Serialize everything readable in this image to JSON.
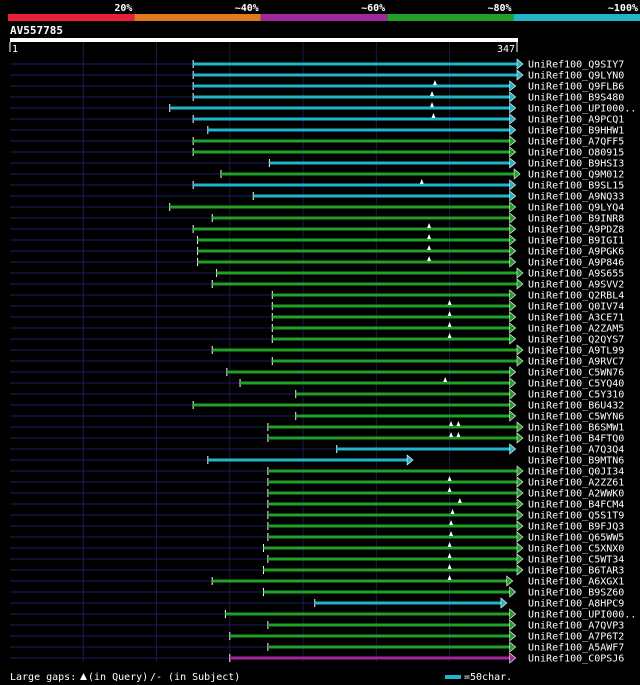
{
  "chart_data": {
    "type": "alignment-overview",
    "title": "AV557785",
    "query_length": 347,
    "axis": {
      "start_label": "1",
      "end_label": "347",
      "start": 1,
      "end": 347
    },
    "identity_legend": [
      {
        "label": "20%",
        "color": "#e8203a"
      },
      {
        "label": "~40%",
        "color": "#e07a1c"
      },
      {
        "label": "~60%",
        "color": "#a0289c"
      },
      {
        "label": "~80%",
        "color": "#22a028"
      },
      {
        "label": "~100%",
        "color": "#22b4c8"
      }
    ],
    "footer": {
      "gaps_label": "Large gaps:",
      "gaps_query": "(in Query)",
      "gaps_subject": "/- (in Subject)",
      "scale_label": "=50char."
    },
    "hits": [
      {
        "name": "UniRef100_Q9SIY7",
        "start": 126,
        "end": 347,
        "color": "cyan",
        "arrow": true,
        "gaps": []
      },
      {
        "name": "UniRef100_Q9LYN0",
        "start": 126,
        "end": 347,
        "color": "cyan",
        "arrow": true,
        "gaps": []
      },
      {
        "name": "UniRef100_Q9FLB6",
        "start": 126,
        "end": 342,
        "color": "cyan",
        "arrow": true,
        "gaps": [
          291
        ]
      },
      {
        "name": "UniRef100_B9S480",
        "start": 126,
        "end": 342,
        "color": "cyan",
        "arrow": true,
        "gaps": [
          289
        ]
      },
      {
        "name": "UniRef100_UPI000..",
        "start": 110,
        "end": 342,
        "color": "cyan",
        "arrow": true,
        "gaps": [
          289
        ]
      },
      {
        "name": "UniRef100_A9PCQ1",
        "start": 126,
        "end": 342,
        "color": "cyan",
        "arrow": true,
        "gaps": [
          290
        ]
      },
      {
        "name": "UniRef100_B9HHW1",
        "start": 136,
        "end": 342,
        "color": "cyan",
        "arrow": true,
        "gaps": []
      },
      {
        "name": "UniRef100_A7QFF5",
        "start": 126,
        "end": 342,
        "color": "green",
        "arrow": true,
        "gaps": []
      },
      {
        "name": "UniRef100_O80915",
        "start": 126,
        "end": 342,
        "color": "green",
        "arrow": true,
        "gaps": []
      },
      {
        "name": "UniRef100_B9HSI3",
        "start": 178,
        "end": 342,
        "color": "cyan",
        "arrow": true,
        "gaps": []
      },
      {
        "name": "UniRef100_Q9M012",
        "start": 145,
        "end": 345,
        "color": "green",
        "arrow": true,
        "gaps": []
      },
      {
        "name": "UniRef100_B9SL15",
        "start": 126,
        "end": 342,
        "color": "cyan",
        "arrow": true,
        "gaps": [
          282
        ]
      },
      {
        "name": "UniRef100_A9NQ33",
        "start": 167,
        "end": 342,
        "color": "cyan",
        "arrow": true,
        "gaps": []
      },
      {
        "name": "UniRef100_Q9LYQ4",
        "start": 110,
        "end": 342,
        "color": "green",
        "arrow": true,
        "gaps": []
      },
      {
        "name": "UniRef100_B9INR8",
        "start": 139,
        "end": 342,
        "color": "green",
        "arrow": true,
        "gaps": []
      },
      {
        "name": "UniRef100_A9PDZ8",
        "start": 126,
        "end": 342,
        "color": "green",
        "arrow": true,
        "gaps": [
          287
        ]
      },
      {
        "name": "UniRef100_B9IGI1",
        "start": 129,
        "end": 342,
        "color": "green",
        "arrow": true,
        "gaps": [
          287
        ]
      },
      {
        "name": "UniRef100_A9PGK6",
        "start": 129,
        "end": 342,
        "color": "green",
        "arrow": true,
        "gaps": [
          287
        ]
      },
      {
        "name": "UniRef100_A9P846",
        "start": 129,
        "end": 342,
        "color": "green",
        "arrow": true,
        "gaps": [
          287
        ]
      },
      {
        "name": "UniRef100_A9S655",
        "start": 142,
        "end": 347,
        "color": "green",
        "arrow": true,
        "gaps": []
      },
      {
        "name": "UniRef100_A9SVV2",
        "start": 139,
        "end": 347,
        "color": "green",
        "arrow": true,
        "gaps": []
      },
      {
        "name": "UniRef100_Q2RBL4",
        "start": 180,
        "end": 342,
        "color": "green",
        "arrow": true,
        "gaps": []
      },
      {
        "name": "UniRef100_Q0IV74",
        "start": 180,
        "end": 342,
        "color": "green",
        "arrow": true,
        "gaps": [
          301
        ]
      },
      {
        "name": "UniRef100_A3CE71",
        "start": 180,
        "end": 342,
        "color": "green",
        "arrow": true,
        "gaps": [
          301
        ]
      },
      {
        "name": "UniRef100_A2ZAM5",
        "start": 180,
        "end": 342,
        "color": "green",
        "arrow": true,
        "gaps": [
          301
        ]
      },
      {
        "name": "UniRef100_Q2QYS7",
        "start": 180,
        "end": 342,
        "color": "green",
        "arrow": true,
        "gaps": [
          301
        ]
      },
      {
        "name": "UniRef100_A9TL99",
        "start": 139,
        "end": 347,
        "color": "green",
        "arrow": true,
        "gaps": []
      },
      {
        "name": "UniRef100_A9RVC7",
        "start": 180,
        "end": 347,
        "color": "green",
        "arrow": true,
        "gaps": []
      },
      {
        "name": "UniRef100_C5WN76",
        "start": 149,
        "end": 342,
        "color": "green",
        "arrow": true,
        "gaps": []
      },
      {
        "name": "UniRef100_C5YQ40",
        "start": 158,
        "end": 342,
        "color": "green",
        "arrow": true,
        "gaps": [
          298
        ]
      },
      {
        "name": "UniRef100_C5Y310",
        "start": 196,
        "end": 342,
        "color": "green",
        "arrow": true,
        "gaps": []
      },
      {
        "name": "UniRef100_B6U432",
        "start": 126,
        "end": 342,
        "color": "green",
        "arrow": true,
        "gaps": []
      },
      {
        "name": "UniRef100_C5WYN6",
        "start": 196,
        "end": 342,
        "color": "green",
        "arrow": true,
        "gaps": []
      },
      {
        "name": "UniRef100_B6SMW1",
        "start": 177,
        "end": 347,
        "color": "green",
        "arrow": true,
        "gaps": [
          302,
          307
        ]
      },
      {
        "name": "UniRef100_B4FTQ0",
        "start": 177,
        "end": 347,
        "color": "green",
        "arrow": true,
        "gaps": [
          302,
          307
        ]
      },
      {
        "name": "UniRef100_A7Q3Q4",
        "start": 224,
        "end": 342,
        "color": "cyan",
        "arrow": true,
        "gaps": []
      },
      {
        "name": "UniRef100_B9MTN6",
        "start": 136,
        "end": 272,
        "color": "cyan",
        "arrow": true,
        "gaps": []
      },
      {
        "name": "UniRef100_Q0JI34",
        "start": 177,
        "end": 347,
        "color": "green",
        "arrow": true,
        "gaps": []
      },
      {
        "name": "UniRef100_A2ZZ61",
        "start": 177,
        "end": 347,
        "color": "green",
        "arrow": true,
        "gaps": [
          301
        ]
      },
      {
        "name": "UniRef100_A2WWK0",
        "start": 177,
        "end": 347,
        "color": "green",
        "arrow": true,
        "gaps": [
          301
        ]
      },
      {
        "name": "UniRef100_B4FCM4",
        "start": 177,
        "end": 347,
        "color": "green",
        "arrow": true,
        "gaps": [
          308
        ]
      },
      {
        "name": "UniRef100_Q5S1T9",
        "start": 177,
        "end": 347,
        "color": "green",
        "arrow": true,
        "gaps": [
          303
        ]
      },
      {
        "name": "UniRef100_B9FJQ3",
        "start": 177,
        "end": 347,
        "color": "green",
        "arrow": true,
        "gaps": [
          302
        ]
      },
      {
        "name": "UniRef100_Q65WW5",
        "start": 177,
        "end": 347,
        "color": "green",
        "arrow": true,
        "gaps": [
          302
        ]
      },
      {
        "name": "UniRef100_C5XNX0",
        "start": 174,
        "end": 347,
        "color": "green",
        "arrow": true,
        "gaps": [
          301
        ]
      },
      {
        "name": "UniRef100_C5WT34",
        "start": 177,
        "end": 347,
        "color": "green",
        "arrow": true,
        "gaps": [
          301
        ]
      },
      {
        "name": "UniRef100_B6TAR3",
        "start": 174,
        "end": 347,
        "color": "green",
        "arrow": true,
        "gaps": [
          301
        ]
      },
      {
        "name": "UniRef100_A6XGX1",
        "start": 139,
        "end": 340,
        "color": "green",
        "arrow": true,
        "gaps": [
          301
        ]
      },
      {
        "name": "UniRef100_B9SZ60",
        "start": 174,
        "end": 342,
        "color": "green",
        "arrow": true,
        "gaps": []
      },
      {
        "name": "UniRef100_A8HPC9",
        "start": 209,
        "end": 336,
        "color": "cyan",
        "arrow": true,
        "gaps": []
      },
      {
        "name": "UniRef100_UPI000..",
        "start": 148,
        "end": 342,
        "color": "green",
        "arrow": true,
        "gaps": []
      },
      {
        "name": "UniRef100_A7QVP3",
        "start": 177,
        "end": 342,
        "color": "green",
        "arrow": true,
        "gaps": []
      },
      {
        "name": "UniRef100_A7P6T2",
        "start": 151,
        "end": 342,
        "color": "green",
        "arrow": true,
        "gaps": []
      },
      {
        "name": "UniRef100_A5AWF7",
        "start": 177,
        "end": 342,
        "color": "green",
        "arrow": true,
        "gaps": []
      },
      {
        "name": "UniRef100_C0PSJ6",
        "start": 151,
        "end": 342,
        "color": "purple",
        "arrow": true,
        "gaps": []
      }
    ]
  }
}
